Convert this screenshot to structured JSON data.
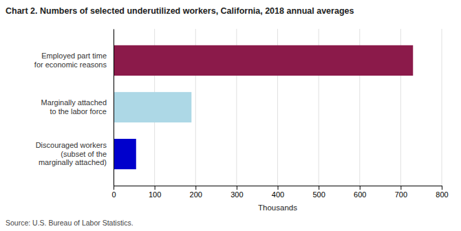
{
  "chart_data": {
    "type": "bar",
    "orientation": "horizontal",
    "title": "Chart 2. Numbers of selected underutilized workers, California, 2018  annual averages",
    "categories": [
      "Discouraged workers\n(subset of the\nmarginally attached)",
      "Marginally attached\nto the labor force",
      "Employed part time\nfor economic reasons"
    ],
    "values": [
      55,
      190,
      730
    ],
    "colors": [
      "#0000cc",
      "#add8e6",
      "#8b1a4a"
    ],
    "xlabel": "Thousands",
    "xlim": [
      0,
      800
    ],
    "xticks": [
      0,
      100,
      200,
      300,
      400,
      500,
      600,
      700,
      800
    ],
    "grid": true,
    "source": "Source: U.S. Bureau of Labor Statistics."
  }
}
